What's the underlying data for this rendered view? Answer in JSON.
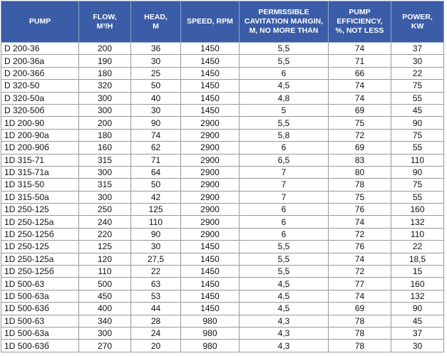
{
  "table": {
    "header": [
      "PUMP",
      "FLOW,\nM³/H",
      "HEAD,\nM",
      "SPEED, RPM",
      "PERMISSIBLE\nCAVITATION MARGIN,\nM, NO MORE THAN",
      "PUMP\nEFFICIENCY,\n%, NOT LESS",
      "POWER,\nKW"
    ],
    "rows": [
      [
        "D 200-36",
        "200",
        "36",
        "1450",
        "5,5",
        "74",
        "37"
      ],
      [
        "D 200-36a",
        "190",
        "30",
        "1450",
        "5,5",
        "71",
        "30"
      ],
      [
        "D 200-36б",
        "180",
        "25",
        "1450",
        "6",
        "66",
        "22"
      ],
      [
        "D 320-50",
        "320",
        "50",
        "1450",
        "4,5",
        "74",
        "75"
      ],
      [
        "D 320-50a",
        "300",
        "40",
        "1450",
        "4,8",
        "74",
        "55"
      ],
      [
        "D 320-50б",
        "300",
        "30",
        "1450",
        "5",
        "69",
        "45"
      ],
      [
        "1D 200-90",
        "200",
        "90",
        "2900",
        "5,5",
        "75",
        "90"
      ],
      [
        "1D 200-90a",
        "180",
        "74",
        "2900",
        "5,8",
        "72",
        "75"
      ],
      [
        "1D 200-90б",
        "160",
        "62",
        "2900",
        "6",
        "69",
        "55"
      ],
      [
        "1D 315-71",
        "315",
        "71",
        "2900",
        "6,5",
        "83",
        "110"
      ],
      [
        "1D 315-71a",
        "300",
        "64",
        "2900",
        "7",
        "80",
        "90"
      ],
      [
        "1D 315-50",
        "315",
        "50",
        "2900",
        "7",
        "78",
        "75"
      ],
      [
        "1D 315-50a",
        "300",
        "42",
        "2900",
        "7",
        "75",
        "55"
      ],
      [
        "1D 250-125",
        "250",
        "125",
        "2900",
        "6",
        "76",
        "160"
      ],
      [
        "1D 250-125a",
        "240",
        "110",
        "2900",
        "6",
        "74",
        "132"
      ],
      [
        "1D 250-125б",
        "220",
        "90",
        "2900",
        "6",
        "72",
        "110"
      ],
      [
        "1D 250-125",
        "125",
        "30",
        "1450",
        "5,5",
        "76",
        "22"
      ],
      [
        "1D 250-125a",
        "120",
        "27,5",
        "1450",
        "5,5",
        "74",
        "18,5"
      ],
      [
        "1D 250-125б",
        "110",
        "22",
        "1450",
        "5,5",
        "72",
        "15"
      ],
      [
        "1D 500-63",
        "500",
        "63",
        "1450",
        "4,5",
        "77",
        "160"
      ],
      [
        "1D 500-63a",
        "450",
        "53",
        "1450",
        "4,5",
        "74",
        "132"
      ],
      [
        "1D 500-63б",
        "400",
        "44",
        "1450",
        "4,5",
        "69",
        "90"
      ],
      [
        "1D 500-63",
        "340",
        "28",
        "980",
        "4,3",
        "78",
        "45"
      ],
      [
        "1D 500-63a",
        "300",
        "24",
        "980",
        "4,3",
        "78",
        "37"
      ],
      [
        "1D 500-63б",
        "270",
        "20",
        "980",
        "4,3",
        "78",
        "30"
      ]
    ]
  }
}
